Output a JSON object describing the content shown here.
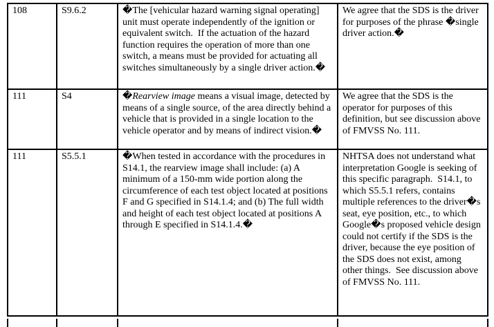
{
  "table": {
    "rows": [
      {
        "standard": "108",
        "section": "S9.6.2",
        "quote": "�The [vehicular hazard warning signal operating] unit must operate independently of the ignition or equivalent switch.  If the actuation of the hazard function requires the operation of more than one switch, a means must be provided for actuating all switches simultaneously by a single driver action.�",
        "response": "We agree that the SDS is the driver for purposes of the phrase �single driver action.�"
      },
      {
        "standard": "111",
        "section": "S4",
        "quote_open": "�",
        "quote_term": "Rearview image",
        "quote_rest": " means a visual image, detected by means of a single source, of the area directly behind a vehicle that is provided in a single location to the vehicle operator and by means of indirect vision.�",
        "response": "We agree that the SDS is the operator for purposes of this definition, but see discussion above of FMVSS No. 111."
      },
      {
        "standard": "111",
        "section": "S5.5.1",
        "quote": "�When tested in accordance with the procedures in S14.1, the rearview image shall include: (a) A minimum of a 150-mm wide portion along the circumference of each test object located at positions F and G specified in S14.1.4; and (b) The full width and height of each test object located at positions A through E specified in S14.1.4.�",
        "response": "NHTSA does not understand what interpretation Google is seeking of this specific paragraph.  S14.1, to which S5.5.1 refers, contains multiple references to the driver�s seat, eye position, etc., to which Google�s proposed vehicle design could not certify if the SDS is the driver, because the eye position of the SDS does not exist, among other things.  See discussion above of FMVSS No. 111."
      }
    ]
  }
}
